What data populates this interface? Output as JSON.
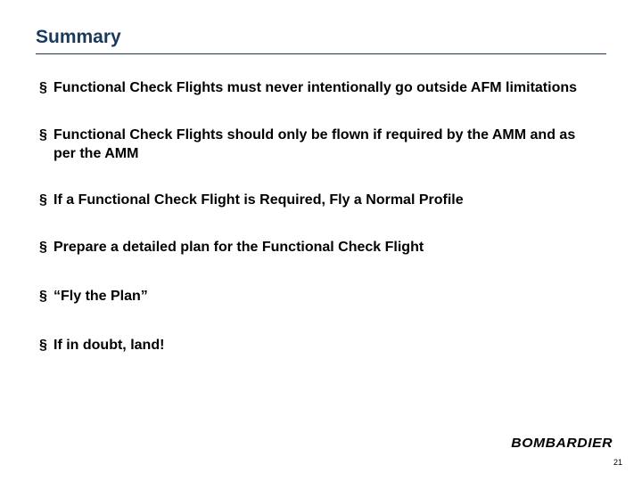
{
  "slide": {
    "title": "Summary",
    "title_color": "#1a3a5c",
    "divider_color": "#1a3a5c",
    "background_color": "#ffffff",
    "bullet_marker": "§",
    "bullets": [
      "Functional Check Flights must never intentionally go outside AFM limitations",
      "Functional Check Flights should only be flown if required by the AMM and as per the AMM",
      "If a Functional Check Flight is Required, Fly a Normal Profile",
      "Prepare a detailed plan for the Functional Check Flight",
      "“Fly the Plan”",
      "If in doubt, land!"
    ],
    "bullet_font_size": 16,
    "bullet_font_weight": "bold",
    "bullet_color": "#000000",
    "logo_text": "BOMBARDIER",
    "page_number": "21"
  }
}
